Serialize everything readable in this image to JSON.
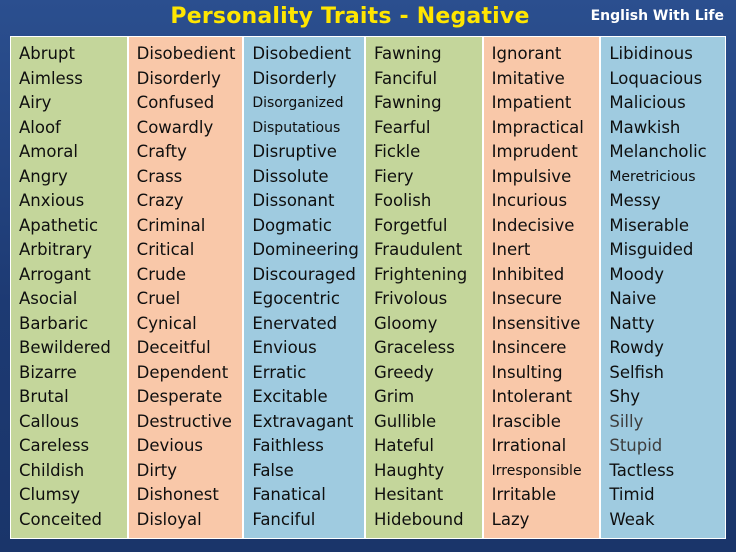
{
  "header": {
    "title": "Personality Traits - Negative",
    "brand": "English With Life"
  },
  "colors": {
    "background": "#1f3f7a",
    "title": "#ffe600",
    "green": "#c4d69b",
    "peach": "#f9c8a9",
    "blue": "#9fcbe0"
  },
  "columns": [
    {
      "words": [
        "Abrupt",
        "Aimless",
        "Airy",
        "Aloof",
        "Amoral",
        "Angry",
        "Anxious",
        "Apathetic",
        "Arbitrary",
        "Arrogant",
        "Asocial",
        "Barbaric",
        "Bewildered",
        "Bizarre",
        "Brutal",
        "Callous",
        "Careless",
        "Childish",
        "Clumsy",
        "Conceited"
      ]
    },
    {
      "words": [
        "Disobedient",
        "Disorderly",
        "Confused",
        "Cowardly",
        "Crafty",
        "Crass",
        "Crazy",
        "Criminal",
        "Critical",
        "Crude",
        "Cruel",
        "Cynical",
        "Deceitful",
        "Dependent",
        "Desperate",
        "Destructive",
        "Devious",
        "Dirty",
        "Dishonest",
        "Disloyal"
      ]
    },
    {
      "words": [
        "Disobedient",
        "Disorderly",
        "Disorganized",
        "Disputatious",
        "Disruptive",
        "Dissolute",
        "Dissonant",
        "Dogmatic",
        "Domineering",
        "Discouraged",
        "Egocentric",
        "Enervated",
        "Envious",
        "Erratic",
        "Excitable",
        "Extravagant",
        "Faithless",
        "False",
        "Fanatical",
        "Fanciful"
      ]
    },
    {
      "words": [
        "Fawning",
        "Fanciful",
        "Fawning",
        "Fearful",
        "Fickle",
        "Fiery",
        "Foolish",
        "Forgetful",
        "Fraudulent",
        "Frightening",
        "Frivolous",
        "Gloomy",
        "Graceless",
        "Greedy",
        "Grim",
        "Gullible",
        "Hateful",
        "Haughty",
        "Hesitant",
        "Hidebound"
      ]
    },
    {
      "words": [
        "Ignorant",
        "Imitative",
        "Impatient",
        "Impractical",
        "Imprudent",
        "Impulsive",
        "Incurious",
        "Indecisive",
        "Inert",
        "Inhibited",
        "Insecure",
        "Insensitive",
        "Insincere",
        "Insulting",
        "Intolerant",
        "Irascible",
        "Irrational",
        "Irresponsible",
        "Irritable",
        "Lazy"
      ]
    },
    {
      "words": [
        "Libidinous",
        "Loquacious",
        "Malicious",
        "Mawkish",
        "Melancholic",
        "Meretricious",
        "Messy",
        "Miserable",
        "Misguided",
        "Moody",
        "Naive",
        "Natty",
        "Rowdy",
        "Selfish",
        "Shy",
        "Silly",
        "Stupid",
        "Tactless",
        "Timid",
        "Weak"
      ]
    }
  ]
}
